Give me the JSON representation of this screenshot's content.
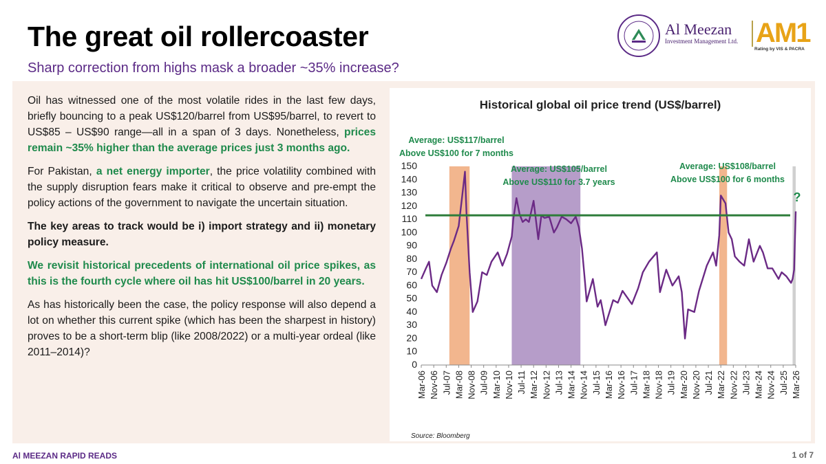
{
  "header": {
    "title": "The great oil rollercoaster",
    "subtitle": "Sharp correction from highs mask a broader ~35% increase?"
  },
  "logo": {
    "seal_top": "AL MEEZAN",
    "seal_bottom": "INVESTMENTS",
    "seal_tag": "Pure. Profit.",
    "brand_name": "Al Meezan",
    "brand_sub": "Investment Management Ltd.",
    "am_text": "AM1",
    "rating_text": "Rating by VIS & PACRA"
  },
  "body": {
    "p1_a": "Oil has witnessed one of the most volatile rides in the last few days, briefly bouncing to a peak US$120/barrel from US$95/barrel, to revert to US$85 – US$90 range—all in a span of 3 days. Nonetheless, ",
    "p1_b": "prices remain ~35% higher than the average prices just 3 months ago.",
    "p2_a": "For Pakistan, ",
    "p2_b": "a net energy importer",
    "p2_c": ", the price volatility combined with the supply disruption fears make it critical to observe and pre-empt the policy actions of the government to navigate the uncertain situation.",
    "p3": "The key areas to track would be i) import strategy and ii) monetary policy measure.",
    "p4": "We revisit historical precedents of international oil price spikes, as this is the fourth cycle where oil has hit US$100/barrel in 20 years.",
    "p5": "As has historically been the case, the policy response will also depend a lot on whether this current spike (which has been the sharpest in history) proves to be a short-term blip (like 2008/2022) or a multi-year ordeal (like 2011–2014)?"
  },
  "footer": {
    "left": "Al MEEZAN RAPID READS",
    "right": "1 of 7"
  },
  "colors": {
    "line": "#6b2a85",
    "reference": "#2e7d3a",
    "shade_orange": "#f0a97a",
    "shade_purple": "#a98cc0",
    "shade_grey": "#c8c8c8",
    "annotation": "#1f8a4c"
  },
  "chart_data": {
    "type": "line",
    "title": "Historical global oil price trend (US$/barrel)",
    "source": "Source: Bloomberg",
    "ylim": [
      0,
      150
    ],
    "yticks": [
      0,
      10,
      20,
      30,
      40,
      50,
      60,
      70,
      80,
      90,
      100,
      110,
      120,
      130,
      140,
      150
    ],
    "xlim": [
      "2006-03",
      "2026-03"
    ],
    "xticks": [
      "Mar-06",
      "Nov-06",
      "Jul-07",
      "Mar-08",
      "Nov-08",
      "Jul-09",
      "Mar-10",
      "Nov-10",
      "Jul-11",
      "Mar-12",
      "Nov-12",
      "Jul-13",
      "Mar-14",
      "Nov-14",
      "Jul-15",
      "Mar-16",
      "Nov-16",
      "Jul-17",
      "Mar-18",
      "Nov-18",
      "Jul-19",
      "Mar-20",
      "Nov-20",
      "Jul-21",
      "Mar-22",
      "Nov-22",
      "Jul-23",
      "Mar-24",
      "Nov-24",
      "Jul-25",
      "Mar-26"
    ],
    "reference_line": 113,
    "series": [
      {
        "x": [
          "2006-03",
          "2006-06",
          "2006-08",
          "2006-10",
          "2007-01",
          "2007-04",
          "2007-07",
          "2007-10",
          "2007-12",
          "2008-03",
          "2008-05",
          "2008-07",
          "2008-08",
          "2008-10",
          "2008-12",
          "2009-03",
          "2009-06",
          "2009-09",
          "2009-12",
          "2010-04",
          "2010-07",
          "2010-10",
          "2011-01",
          "2011-02",
          "2011-04",
          "2011-06",
          "2011-08",
          "2011-10",
          "2011-12",
          "2012-03",
          "2012-06",
          "2012-08",
          "2012-10",
          "2013-01",
          "2013-04",
          "2013-06",
          "2013-09",
          "2013-12",
          "2014-03",
          "2014-06",
          "2014-08",
          "2014-10",
          "2014-12",
          "2015-01",
          "2015-05",
          "2015-08",
          "2015-10",
          "2015-12",
          "2016-01",
          "2016-06",
          "2016-09",
          "2016-12",
          "2017-06",
          "2017-10",
          "2018-01",
          "2018-05",
          "2018-10",
          "2018-12",
          "2019-04",
          "2019-08",
          "2019-12",
          "2020-02",
          "2020-04",
          "2020-06",
          "2020-10",
          "2021-01",
          "2021-06",
          "2021-10",
          "2021-12",
          "2022-02",
          "2022-03",
          "2022-06",
          "2022-08",
          "2022-10",
          "2022-12",
          "2023-03",
          "2023-06",
          "2023-09",
          "2023-12",
          "2024-04",
          "2024-06",
          "2024-09",
          "2024-12",
          "2025-04",
          "2025-06",
          "2025-09",
          "2025-12",
          "2026-01",
          "2026-02",
          "2026-03"
        ],
        "values": [
          65,
          73,
          78,
          60,
          55,
          68,
          77,
          88,
          94,
          105,
          125,
          146,
          115,
          70,
          40,
          48,
          70,
          68,
          78,
          85,
          75,
          84,
          97,
          110,
          126,
          114,
          108,
          110,
          108,
          124,
          95,
          113,
          111,
          112,
          100,
          104,
          112,
          110,
          107,
          112,
          104,
          88,
          62,
          48,
          65,
          44,
          49,
          37,
          30,
          49,
          47,
          56,
          46,
          58,
          70,
          78,
          85,
          55,
          72,
          60,
          67,
          55,
          20,
          42,
          40,
          56,
          75,
          85,
          75,
          98,
          128,
          122,
          100,
          95,
          82,
          78,
          75,
          95,
          78,
          90,
          85,
          73,
          73,
          65,
          70,
          67,
          62,
          65,
          72,
          116
        ]
      }
    ],
    "shaded_periods": [
      {
        "start": "2007-09",
        "end": "2008-10",
        "color": "orange"
      },
      {
        "start": "2011-01",
        "end": "2014-09",
        "color": "purple"
      },
      {
        "start": "2022-02",
        "end": "2022-07",
        "color": "orange"
      },
      {
        "start": "2026-01",
        "end": "2026-03",
        "color": "grey"
      }
    ],
    "annotations": [
      {
        "lines": [
          "Average: US$117/barrel",
          "Above US$100 for 7 months"
        ]
      },
      {
        "lines": [
          "Average: US$105/barrel",
          "Above US$110 for 3.7 years"
        ]
      },
      {
        "lines": [
          "Average: US$108/barrel",
          "Above US$100 for 6 months"
        ]
      },
      {
        "lines": [
          "?"
        ]
      }
    ]
  }
}
